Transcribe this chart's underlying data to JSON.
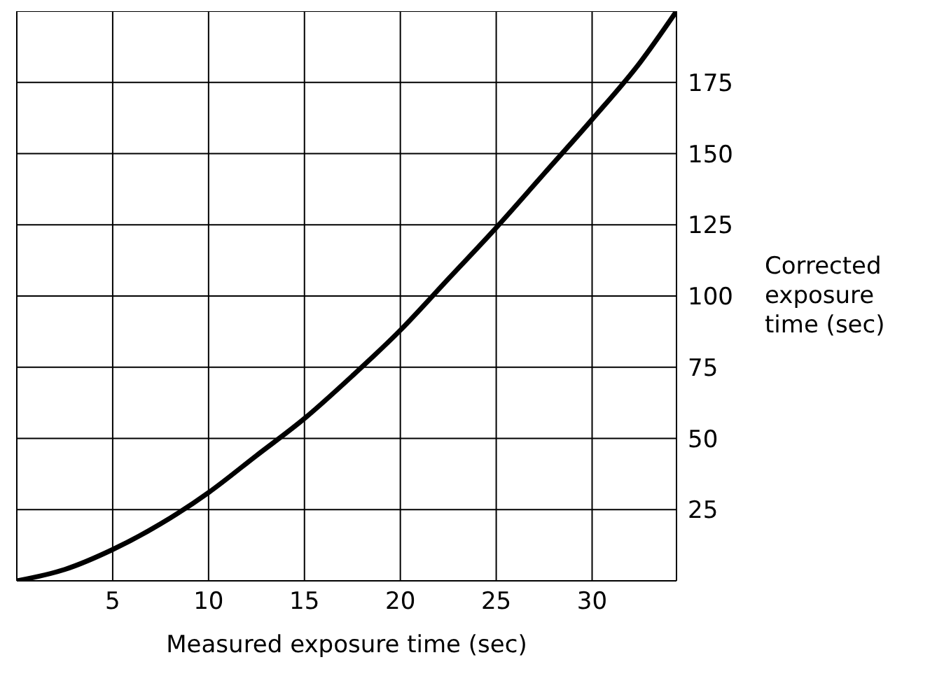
{
  "chart_data": {
    "type": "line",
    "xlabel": "Measured exposure time (sec)",
    "ylabel": "Corrected exposure time (sec)",
    "x": [
      0,
      2.5,
      5,
      7.5,
      10,
      12.5,
      15,
      17.5,
      20,
      22.5,
      25,
      27.5,
      30,
      32.5,
      34.4
    ],
    "series": [
      {
        "color": "#000000",
        "values": [
          0,
          4,
          11,
          20,
          31,
          44,
          57,
          72,
          88,
          106,
          124,
          143,
          162,
          182,
          200
        ]
      }
    ],
    "xlim": [
      0,
      34.4
    ],
    "xticks": [
      5,
      10,
      15,
      20,
      25,
      30
    ],
    "ylim": [
      0,
      200
    ],
    "yticks": [
      25,
      50,
      75,
      100,
      125,
      150,
      175
    ],
    "grid": true,
    "marker": "none",
    "line_style": "solid"
  }
}
